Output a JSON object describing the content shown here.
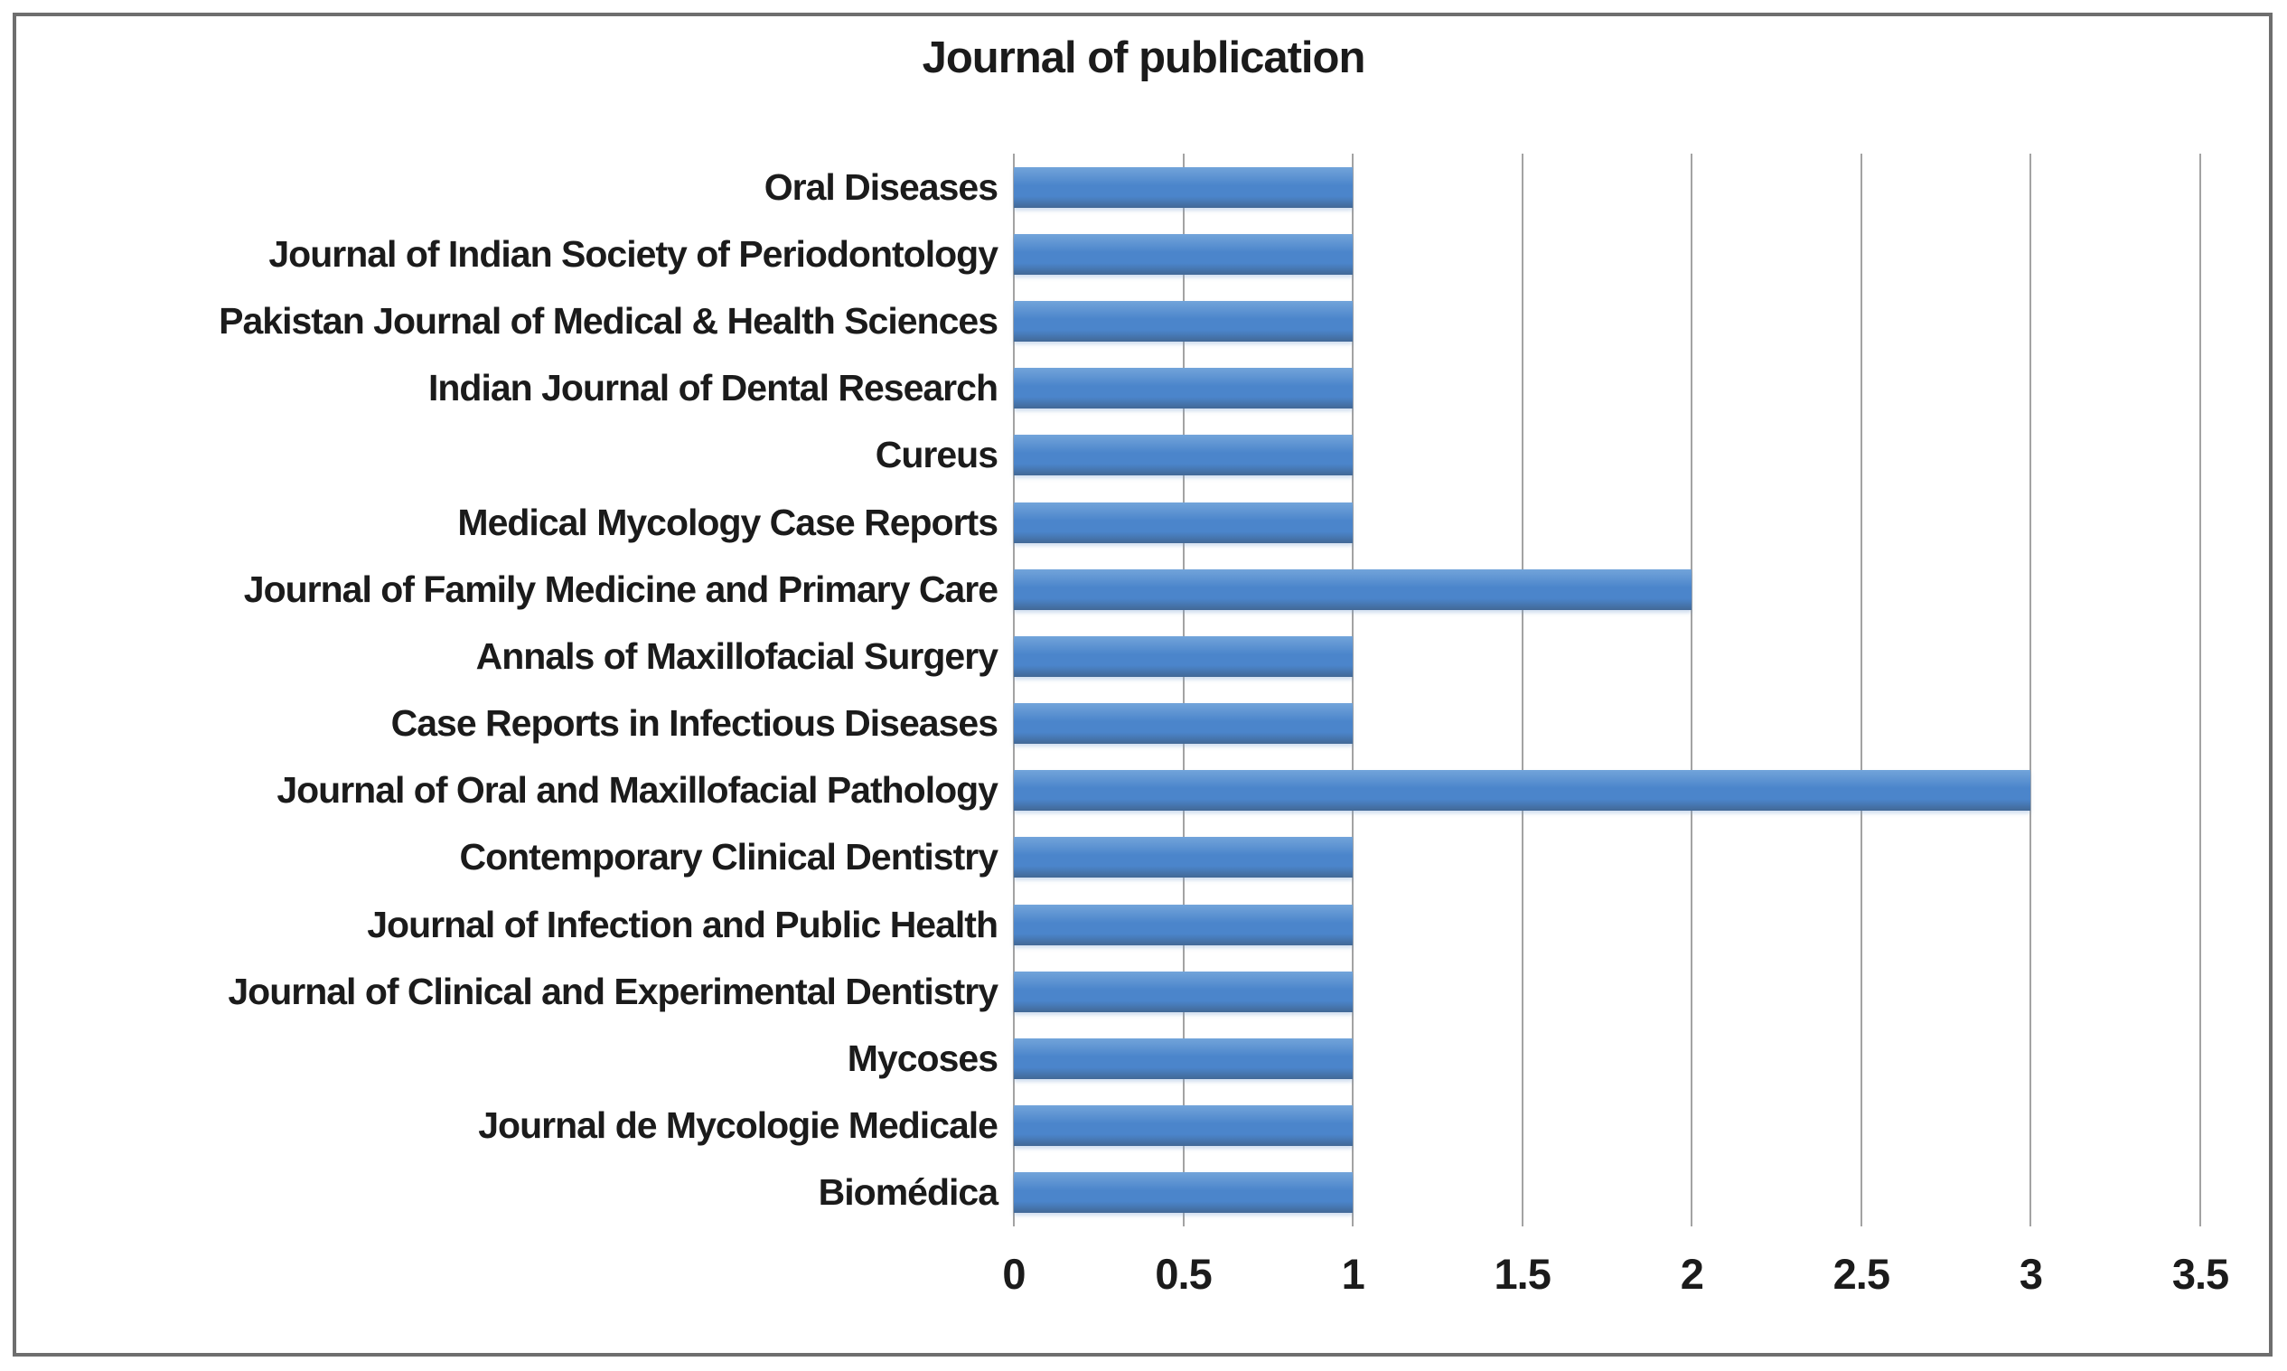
{
  "chart_data": {
    "type": "bar",
    "orientation": "horizontal",
    "title": "Journal of publication",
    "categories": [
      "Oral Diseases",
      "Journal of Indian Society of Periodontology",
      "Pakistan Journal of Medical & Health Sciences",
      "Indian Journal of Dental Research",
      "Cureus",
      "Medical Mycology Case Reports",
      "Journal of Family Medicine and Primary Care",
      "Annals of Maxillofacial Surgery",
      "Case Reports in Infectious Diseases",
      "Journal of Oral and Maxillofacial Pathology",
      "Contemporary Clinical Dentistry",
      "Journal of Infection and Public Health",
      "Journal of Clinical and Experimental Dentistry",
      "Mycoses",
      "Journal de Mycologie Medicale",
      "Biomédica"
    ],
    "values": [
      1,
      1,
      1,
      1,
      1,
      1,
      2,
      1,
      1,
      3,
      1,
      1,
      1,
      1,
      1,
      1
    ],
    "xlabel": "",
    "ylabel": "",
    "xlim": [
      0,
      3.5
    ],
    "x_ticks": [
      0,
      0.5,
      1,
      1.5,
      2,
      2.5,
      3,
      3.5
    ],
    "x_tick_labels": [
      "0",
      "0.5",
      "1",
      "1.5",
      "2",
      "2.5",
      "3",
      "3.5"
    ],
    "grid": "vertical-gridlines",
    "legend": "none",
    "colors": {
      "bar_top": "#72a4da",
      "bar_mid": "#4b85cb",
      "bar_bottom_edge": "#426896",
      "gridline": "#a3a3a3",
      "text": "#1b1b1b",
      "frame_border": "#6e6e6e",
      "background": "#ffffff"
    }
  }
}
